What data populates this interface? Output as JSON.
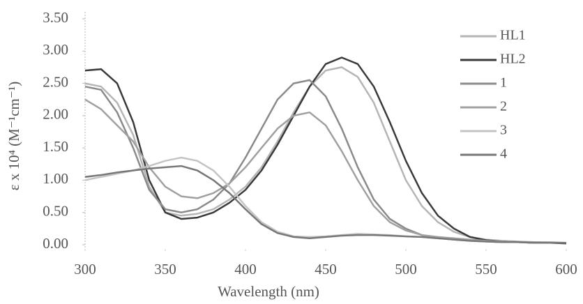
{
  "chart_data": {
    "type": "line",
    "x_label": "Wavelength (nm)",
    "y_label": "ε x 10⁴ (M⁻¹cm⁻¹)",
    "x": [
      300,
      310,
      320,
      330,
      340,
      350,
      360,
      370,
      380,
      390,
      400,
      410,
      420,
      430,
      440,
      450,
      460,
      470,
      480,
      490,
      500,
      510,
      520,
      530,
      540,
      550,
      560,
      570,
      580,
      590,
      600
    ],
    "series": [
      {
        "name": "HL1",
        "color": "#b5b5b5",
        "values": [
          2.5,
          2.45,
          2.2,
          1.7,
          0.9,
          0.5,
          0.45,
          0.48,
          0.55,
          0.7,
          0.9,
          1.2,
          1.6,
          2.05,
          2.45,
          2.7,
          2.75,
          2.6,
          2.2,
          1.6,
          1.0,
          0.6,
          0.35,
          0.2,
          0.12,
          0.08,
          0.06,
          0.05,
          0.04,
          0.04,
          0.03
        ]
      },
      {
        "name": "HL2",
        "color": "#3a3a3a",
        "values": [
          2.7,
          2.72,
          2.5,
          1.9,
          1.0,
          0.5,
          0.4,
          0.42,
          0.5,
          0.65,
          0.85,
          1.15,
          1.55,
          2.0,
          2.45,
          2.8,
          2.9,
          2.8,
          2.45,
          1.9,
          1.3,
          0.8,
          0.45,
          0.25,
          0.12,
          0.07,
          0.05,
          0.04,
          0.03,
          0.03,
          0.02
        ]
      },
      {
        "name": "1",
        "color": "#8a8a8a",
        "values": [
          2.45,
          2.4,
          2.05,
          1.5,
          0.85,
          0.55,
          0.5,
          0.55,
          0.7,
          0.95,
          1.35,
          1.8,
          2.25,
          2.5,
          2.55,
          2.3,
          1.8,
          1.2,
          0.7,
          0.4,
          0.25,
          0.15,
          0.1,
          0.08,
          0.06,
          0.05,
          0.04,
          0.04,
          0.03,
          0.03,
          0.03
        ]
      },
      {
        "name": "2",
        "color": "#a0a0a0",
        "values": [
          2.25,
          2.1,
          1.85,
          1.6,
          1.2,
          0.9,
          0.75,
          0.72,
          0.8,
          0.95,
          1.2,
          1.5,
          1.8,
          2.0,
          2.05,
          1.85,
          1.45,
          1.0,
          0.6,
          0.35,
          0.22,
          0.15,
          0.12,
          0.1,
          0.08,
          0.06,
          0.05,
          0.04,
          0.04,
          0.03,
          0.03
        ]
      },
      {
        "name": "3",
        "color": "#c4c4c4",
        "values": [
          1.0,
          1.05,
          1.1,
          1.15,
          1.22,
          1.3,
          1.35,
          1.3,
          1.15,
          0.9,
          0.6,
          0.35,
          0.2,
          0.13,
          0.12,
          0.13,
          0.15,
          0.17,
          0.16,
          0.15,
          0.13,
          0.12,
          0.1,
          0.08,
          0.06,
          0.05,
          0.04,
          0.04,
          0.03,
          0.03,
          0.03
        ]
      },
      {
        "name": "4",
        "color": "#777777",
        "values": [
          1.05,
          1.08,
          1.12,
          1.15,
          1.18,
          1.2,
          1.22,
          1.15,
          1.0,
          0.8,
          0.55,
          0.32,
          0.18,
          0.12,
          0.1,
          0.12,
          0.14,
          0.15,
          0.15,
          0.14,
          0.13,
          0.12,
          0.1,
          0.08,
          0.06,
          0.05,
          0.04,
          0.04,
          0.03,
          0.03,
          0.03
        ]
      }
    ],
    "xlim": [
      300,
      600
    ],
    "xticks": [
      300,
      350,
      400,
      450,
      500,
      550,
      600
    ],
    "ylim": [
      0,
      3.5
    ],
    "yticks": [
      {
        "value": 0,
        "label": "0.00"
      },
      {
        "value": 0.5,
        "label": "0.50"
      },
      {
        "value": 1,
        "label": "1.00"
      },
      {
        "value": 1.5,
        "label": "1.50"
      },
      {
        "value": 2,
        "label": "2.00"
      },
      {
        "value": 2.5,
        "label": "2.50"
      },
      {
        "value": 3,
        "label": "3.00"
      },
      {
        "value": 3.5,
        "label": "3.50"
      }
    ],
    "grid": false,
    "legend": "right"
  }
}
